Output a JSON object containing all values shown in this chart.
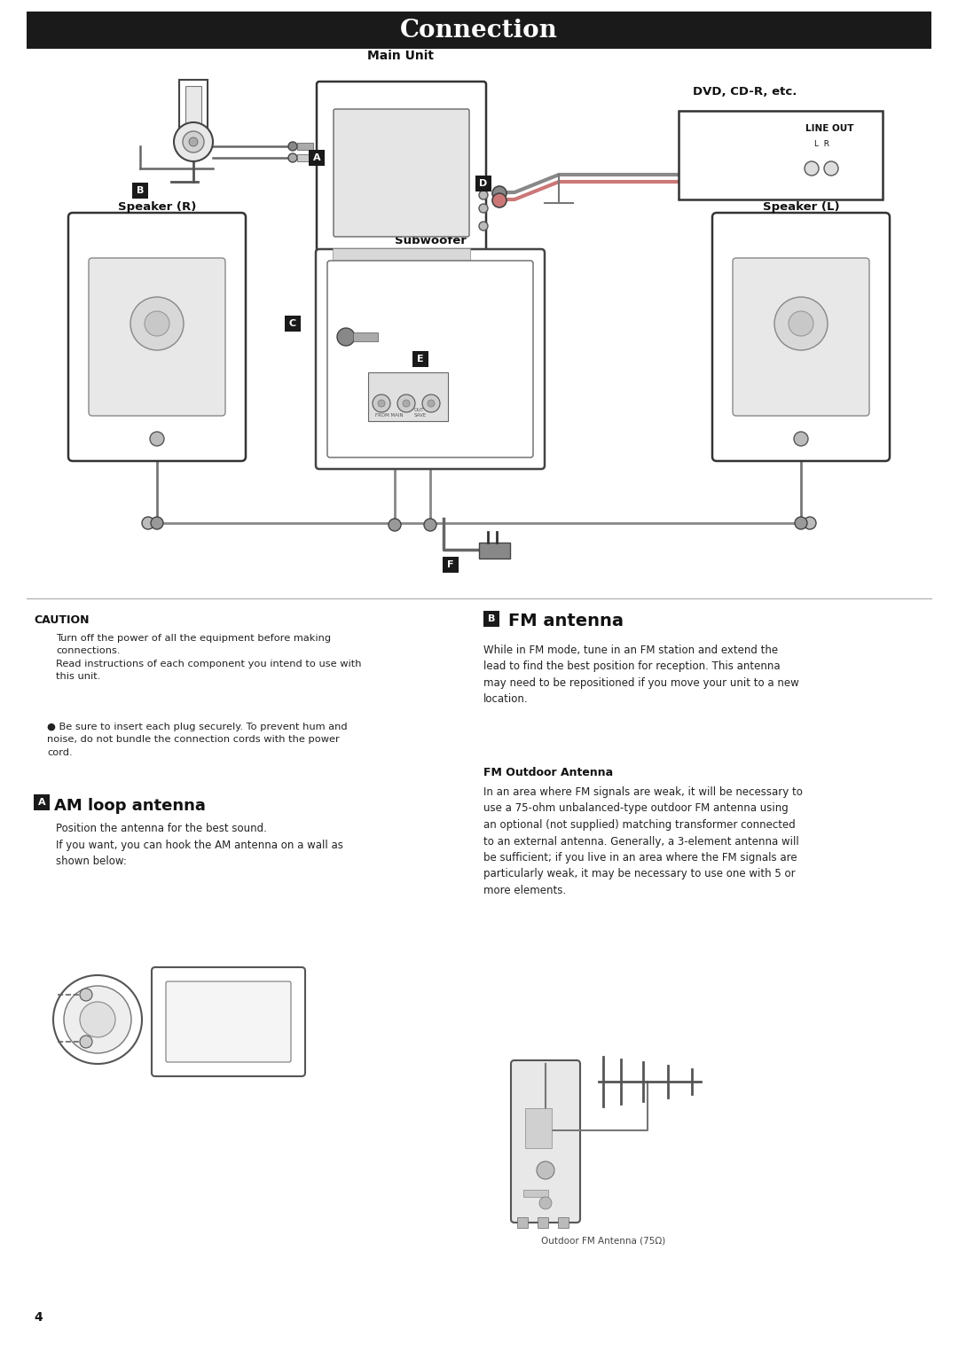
{
  "title": "Connection",
  "title_bg": "#1a1a1a",
  "title_color": "#ffffff",
  "title_fontsize": 20,
  "bg_color": "#ffffff",
  "page_number": "4",
  "caution_title": "CAUTION",
  "am_title": "AM loop antenna",
  "am_prefix": "A",
  "fm_title": "FM antenna",
  "fm_prefix": "B",
  "fm_outdoor_title": "FM Outdoor Antenna",
  "fm_outdoor_caption": "Outdoor FM Antenna (75Ω)",
  "main_unit_label": "Main Unit",
  "dvd_label": "DVD, CD-R, etc.",
  "line_out_label": "LINE OUT",
  "lr_label": "L  R",
  "speaker_r_label": "Speaker (R)",
  "speaker_l_label": "Speaker (L)",
  "subwoofer_label": "Subwoofer"
}
